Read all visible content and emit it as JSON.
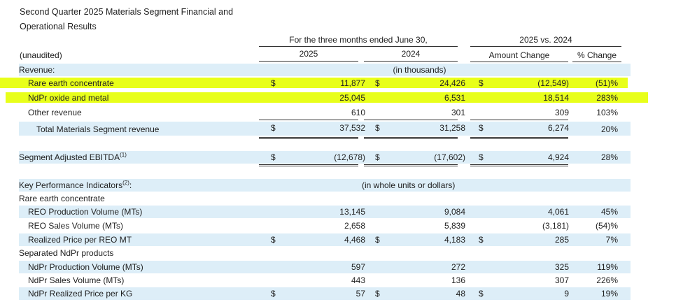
{
  "title_line1": "Second Quarter 2025 Materials Segment Financial and",
  "title_line2": "Operational Results",
  "header": {
    "period": "For the three months ended June 30,",
    "comparison": "2025 vs. 2024",
    "unaudited": "(unaudited)",
    "col_2025": "2025",
    "col_2024": "2024",
    "amount_change": "Amount Change",
    "pct_change": "% Change"
  },
  "sections": {
    "revenue": "Revenue:",
    "in_thousands": "(in thousands)",
    "kpi": "Key Performance Indicators",
    "kpi_sup": "(2)",
    "kpi_colon": ":",
    "whole_units": "(in whole units or dollars)",
    "rec": "Rare earth concentrate",
    "ndpr": "Separated NdPr products",
    "ebitda": "Segment Adjusted EBITDA",
    "ebitda_sup": "(1)"
  },
  "currency": "$",
  "rows": {
    "rare_earth": {
      "label": "Rare earth concentrate",
      "v2025": "11,877",
      "v2024": "24,426",
      "amt": "(12,549)",
      "pct": "(51)%"
    },
    "ndpr_oxide": {
      "label": "NdPr oxide and metal",
      "v2025": "25,045",
      "v2024": "6,531",
      "amt": "18,514",
      "pct": "283%"
    },
    "other": {
      "label": "Other revenue",
      "v2025": "610",
      "v2024": "301",
      "amt": "309",
      "pct": "103%"
    },
    "total": {
      "label": "Total Materials Segment revenue",
      "v2025": "37,532",
      "v2024": "31,258",
      "amt": "6,274",
      "pct": "20%"
    },
    "ebitda": {
      "v2025": "(12,678)",
      "v2024": "(17,602)",
      "amt": "4,924",
      "pct": "28%"
    },
    "reo_prod": {
      "label": "REO Production Volume (MTs)",
      "v2025": "13,145",
      "v2024": "9,084",
      "amt": "4,061",
      "pct": "45%"
    },
    "reo_sales": {
      "label": "REO Sales Volume (MTs)",
      "v2025": "2,658",
      "v2024": "5,839",
      "amt": "(3,181)",
      "pct": "(54)%"
    },
    "reo_price": {
      "label": "Realized Price per REO MT",
      "v2025": "4,468",
      "v2024": "4,183",
      "amt": "285",
      "pct": "7%"
    },
    "ndpr_prod": {
      "label": "NdPr Production Volume (MTs)",
      "v2025": "597",
      "v2024": "272",
      "amt": "325",
      "pct": "119%"
    },
    "ndpr_sales": {
      "label": "NdPr Sales Volume (MTs)",
      "v2025": "443",
      "v2024": "136",
      "amt": "307",
      "pct": "226%"
    },
    "ndpr_price": {
      "label": "NdPr Realized Price per KG",
      "v2025": "57",
      "v2024": "48",
      "amt": "9",
      "pct": "19%"
    }
  },
  "highlight_color": "#e8ff1a",
  "shade_color": "#ddeef8"
}
